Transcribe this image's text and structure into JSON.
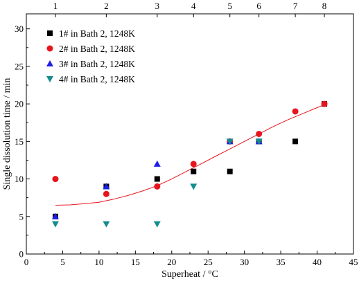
{
  "chart_data": {
    "type": "scatter",
    "title": "",
    "xlabel": "Superheat / °C",
    "ylabel": "Single dissolution time / min",
    "xlim": [
      0,
      45
    ],
    "ylim": [
      0,
      32
    ],
    "xticks": [
      0,
      5,
      10,
      15,
      20,
      25,
      30,
      35,
      40,
      45
    ],
    "yticks": [
      0,
      5,
      10,
      15,
      20,
      25,
      30
    ],
    "top_axis": {
      "positions": [
        4,
        11,
        18,
        23,
        28,
        32,
        37,
        41
      ],
      "labels": [
        "1",
        "2",
        "3",
        "4",
        "5",
        "6",
        "7",
        "8"
      ]
    },
    "grid": false,
    "legend_position": "top-left",
    "series": [
      {
        "name": "1# in Bath 2, 1248K",
        "marker": "square",
        "color": "#000000",
        "x": [
          4,
          11,
          18,
          23,
          28,
          32,
          37,
          41
        ],
        "y": [
          5,
          9,
          10,
          11,
          11,
          15,
          15,
          20
        ]
      },
      {
        "name": "2# in Bath 2, 1248K",
        "marker": "circle",
        "color": "#e8141c",
        "x": [
          4,
          11,
          18,
          23,
          28,
          32,
          37,
          41
        ],
        "y": [
          10,
          8,
          9,
          12,
          15,
          16,
          19,
          20
        ]
      },
      {
        "name": "3# in Bath 2, 1248K",
        "marker": "triangle-up",
        "color": "#1e1ee6",
        "x": [
          4,
          11,
          18,
          28,
          32
        ],
        "y": [
          5,
          9,
          12,
          15,
          15
        ]
      },
      {
        "name": "4# in Bath 2, 1248K",
        "marker": "triangle-down",
        "color": "#148c8c",
        "x": [
          4,
          11,
          18,
          23,
          28,
          32
        ],
        "y": [
          4,
          4,
          4,
          9,
          15,
          15
        ]
      }
    ],
    "fit_curve": {
      "color": "#e8141c",
      "x": [
        4,
        6,
        8,
        10,
        12,
        14,
        16,
        18,
        20,
        22,
        24,
        26,
        28,
        30,
        32,
        34,
        36,
        38,
        40,
        41
      ],
      "y": [
        6.5,
        6.55,
        6.7,
        6.9,
        7.3,
        7.8,
        8.4,
        9.1,
        10.0,
        11.0,
        12.0,
        13.0,
        14.0,
        15.0,
        16.0,
        17.0,
        17.9,
        18.7,
        19.5,
        19.9
      ]
    }
  }
}
